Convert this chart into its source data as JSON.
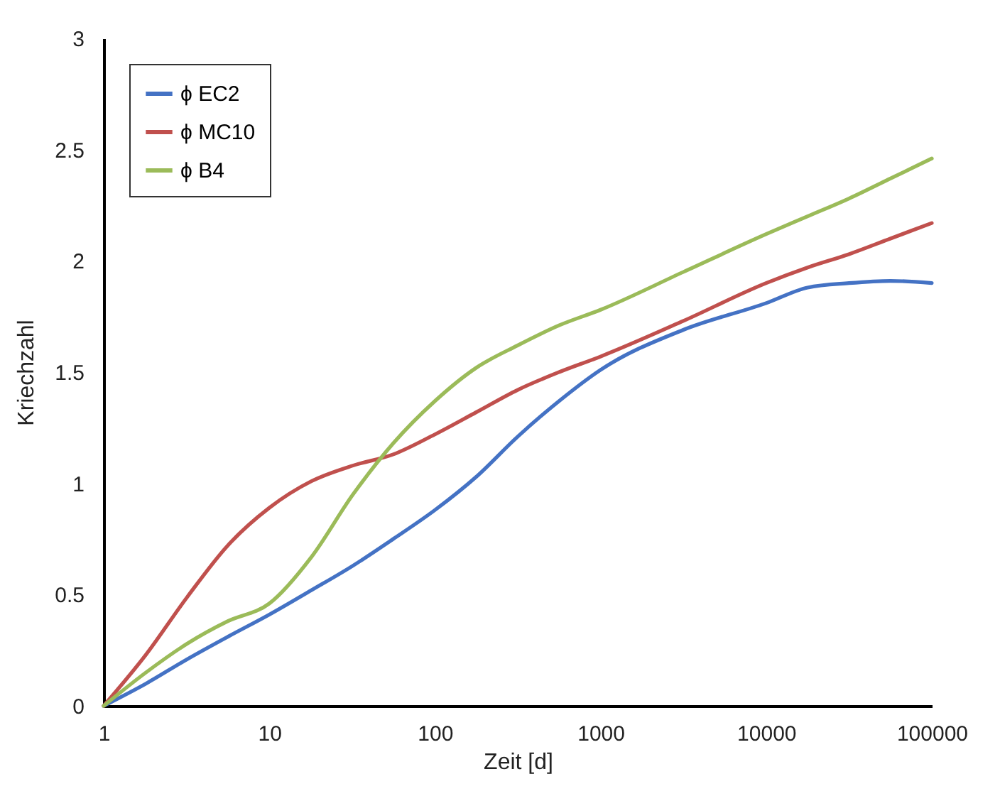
{
  "chart_data": {
    "type": "line",
    "xlabel": "Zeit [d]",
    "ylabel": "Kriechzahl",
    "x": [
      1,
      1.8,
      3.2,
      5.6,
      10,
      18,
      32,
      56,
      100,
      178,
      316,
      562,
      1000,
      3162,
      10000,
      17783,
      31623,
      56234,
      100000
    ],
    "series": [
      {
        "name": "ϕ EC2",
        "color": "#4472c4",
        "values": [
          0,
          0.1,
          0.21,
          0.31,
          0.41,
          0.52,
          0.63,
          0.75,
          0.88,
          1.03,
          1.21,
          1.37,
          1.51,
          1.69,
          1.81,
          1.88,
          1.9,
          1.91,
          1.9
        ]
      },
      {
        "name": "ϕ MC10",
        "color": "#c0504d",
        "values": [
          0,
          0.23,
          0.49,
          0.72,
          0.89,
          1.01,
          1.08,
          1.13,
          1.22,
          1.32,
          1.42,
          1.5,
          1.57,
          1.73,
          1.9,
          1.97,
          2.03,
          2.1,
          2.17
        ]
      },
      {
        "name": "ϕ B4",
        "color": "#9bbb59",
        "values": [
          0,
          0.15,
          0.28,
          0.38,
          0.46,
          0.67,
          0.95,
          1.18,
          1.37,
          1.52,
          1.62,
          1.71,
          1.78,
          1.95,
          2.12,
          2.2,
          2.28,
          2.37,
          2.46
        ]
      }
    ],
    "log": "x",
    "xlim": [
      1,
      100000
    ],
    "xticks": [
      1,
      10,
      100,
      1000,
      10000,
      100000
    ],
    "ylim": [
      0,
      3
    ],
    "yticks": [
      0,
      0.5,
      1,
      1.5,
      2,
      2.5,
      3
    ],
    "grid": false,
    "legend": "top left",
    "marker": "none",
    "line_style": "solid"
  }
}
